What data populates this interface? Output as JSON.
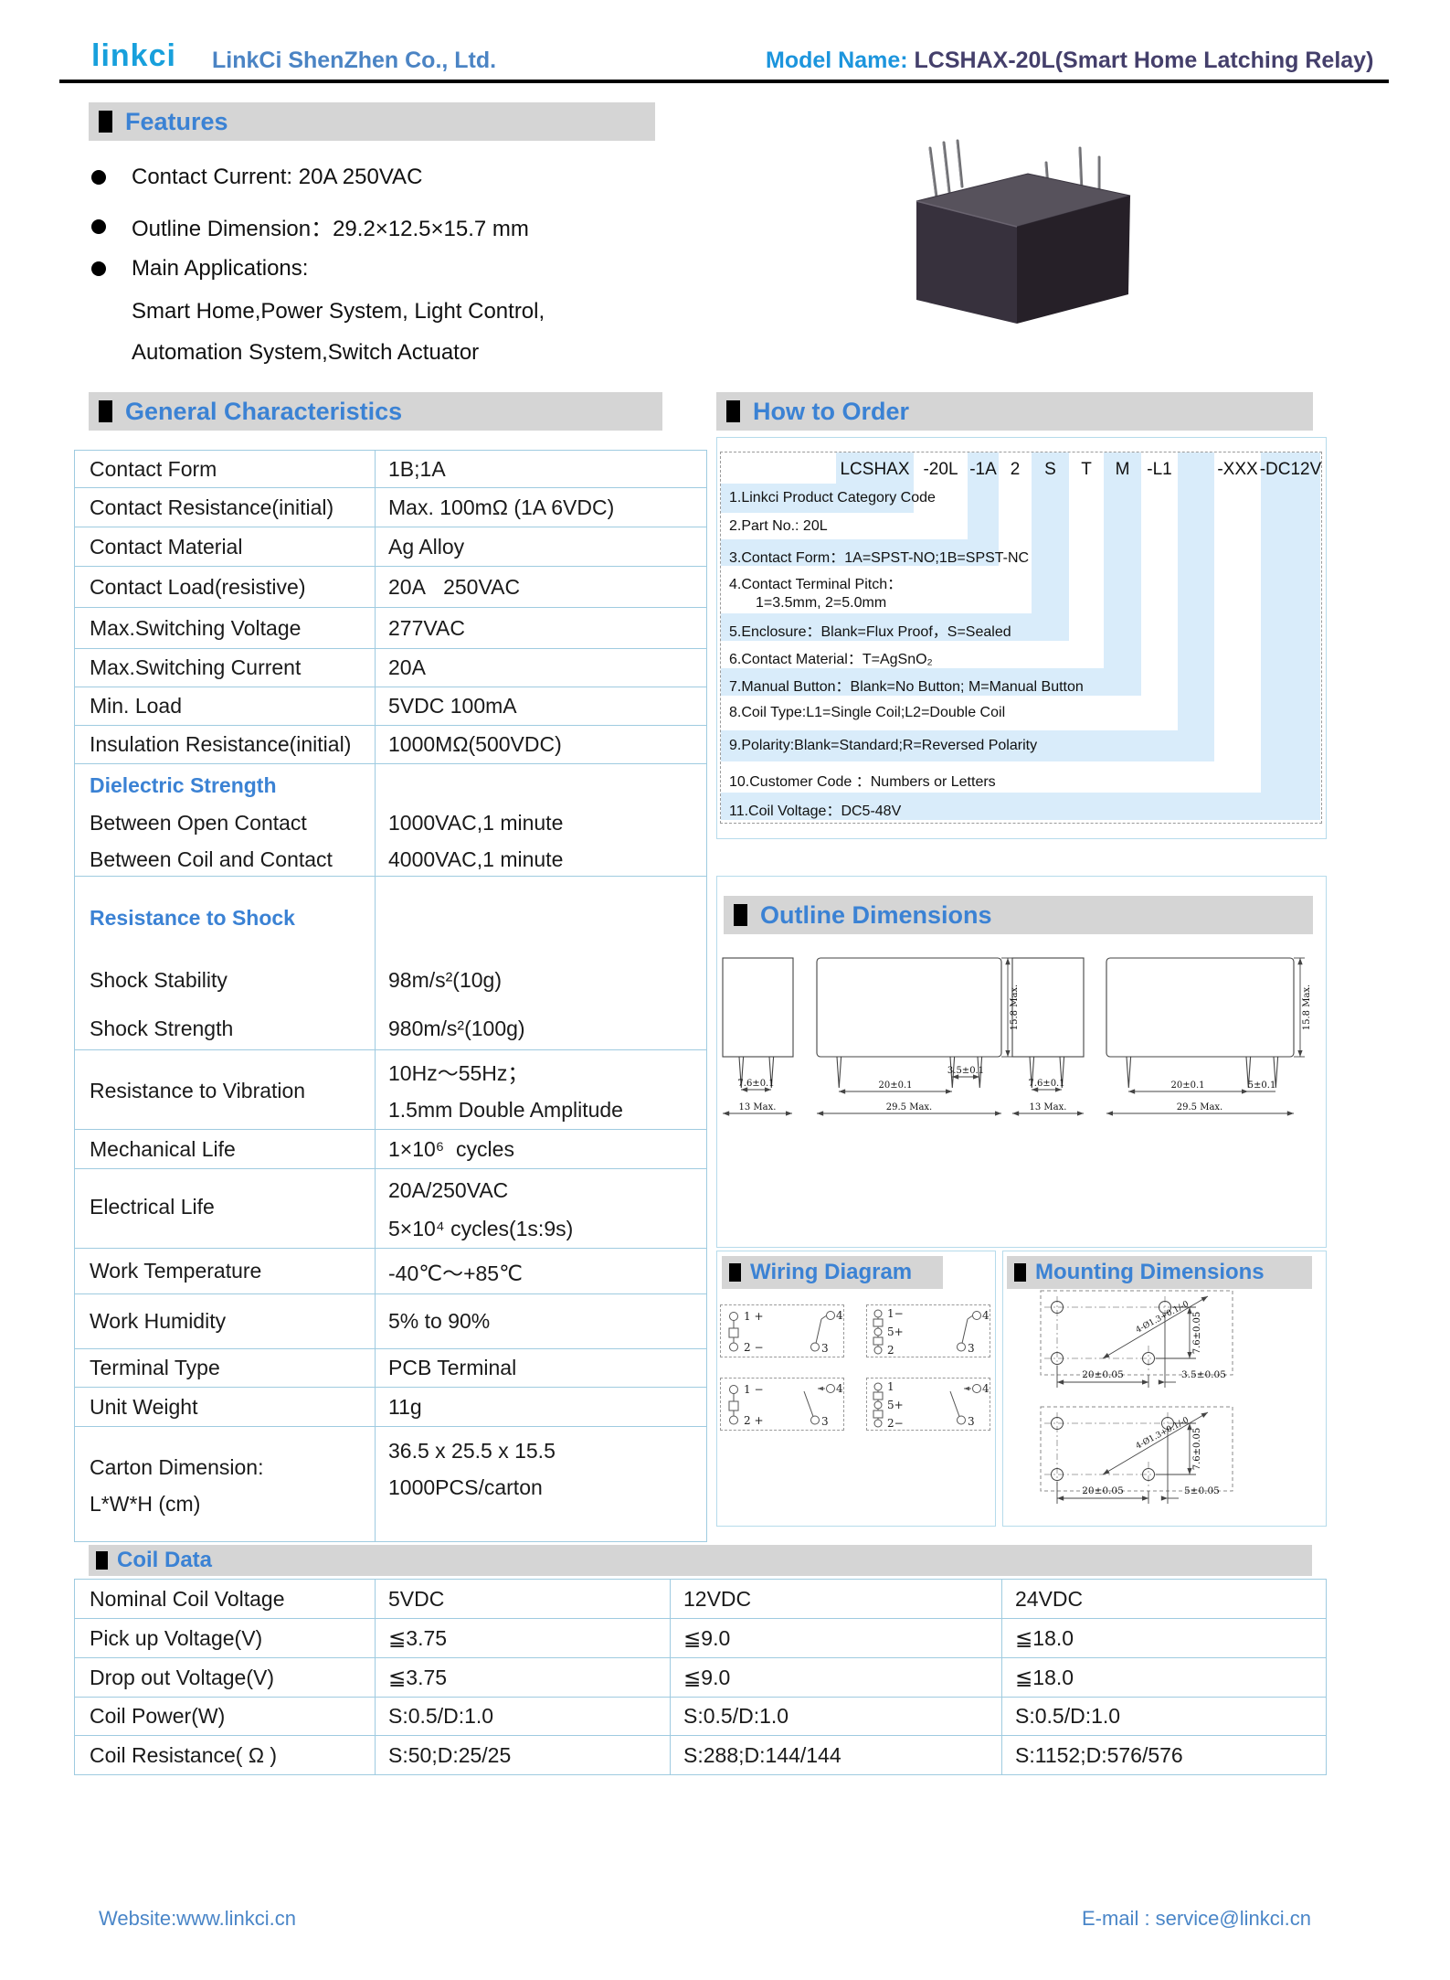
{
  "header": {
    "logo": "linkci",
    "company": "LinkCi ShenZhen Co., Ltd.",
    "model_label": "Model Name: ",
    "model_value": "LCSHAX-20L(Smart Home Latching Relay)"
  },
  "features": {
    "title": "Features",
    "bullets": [
      "Contact Current: 20A 250VAC",
      "Outline Dimension：29.2×12.5×15.7 mm",
      "Main Applications:"
    ],
    "continuation": [
      "Smart Home,Power System, Light Control,",
      "Automation System,Switch Actuator"
    ]
  },
  "general_characteristics": {
    "title": "General Characteristics",
    "rows": [
      {
        "label": [
          "Contact Form"
        ],
        "value": [
          "1B;1A"
        ]
      },
      {
        "label": [
          "Contact Resistance(initial)"
        ],
        "value": [
          "Max. 100mΩ (1A 6VDC)"
        ]
      },
      {
        "label": [
          "Contact Material"
        ],
        "value": [
          "Ag Alloy"
        ]
      },
      {
        "label": [
          "Contact Load(resistive)"
        ],
        "value": [
          "20A   250VAC"
        ]
      },
      {
        "label": [
          "Max.Switching Voltage"
        ],
        "value": [
          "277VAC"
        ]
      },
      {
        "label": [
          "Max.Switching Current"
        ],
        "value": [
          "20A"
        ]
      },
      {
        "label": [
          "Min. Load"
        ],
        "value": [
          "5VDC 100mA"
        ]
      },
      {
        "label": [
          "Insulation Resistance(initial)"
        ],
        "value": [
          "1000MΩ(500VDC)"
        ]
      },
      {
        "label": [
          "Dielectric Strength",
          "Between Open Contact",
          "Between Coil and Contact"
        ],
        "value": [
          "1000VAC,1 minute",
          "4000VAC,1 minute"
        ]
      },
      {
        "label": [
          "Resistance to Shock",
          "Shock Stability",
          "Shock Strength"
        ],
        "value": [
          "98m/s²(10g)",
          "980m/s²(100g)"
        ]
      },
      {
        "label": [
          "Resistance to Vibration"
        ],
        "value": [
          "10Hz～55Hz；",
          "1.5mm Double Amplitude"
        ]
      },
      {
        "label": [
          "Mechanical Life"
        ],
        "value": [
          "1×10⁶  cycles"
        ]
      },
      {
        "label": [
          "Electrical Life"
        ],
        "value": [
          "20A/250VAC",
          "5×10⁴ cycles(1s:9s)"
        ]
      },
      {
        "label": [
          "Work Temperature"
        ],
        "value": [
          "-40℃～+85℃"
        ]
      },
      {
        "label": [
          "Work Humidity"
        ],
        "value": [
          "5% to 90%"
        ]
      },
      {
        "label": [
          "Terminal Type"
        ],
        "value": [
          "PCB Terminal"
        ]
      },
      {
        "label": [
          "Unit Weight"
        ],
        "value": [
          "11g"
        ]
      },
      {
        "label": [
          "Carton Dimension:",
          "L*W*H (cm)"
        ],
        "value": [
          "36.5 x 25.5 x 15.5",
          "1000PCS/carton"
        ]
      }
    ]
  },
  "how_to_order": {
    "title": "How to Order",
    "codes": [
      "LCSHAX",
      "-20L",
      "-1A",
      "2",
      "S",
      "T",
      "M",
      "-L1",
      "",
      "-XXX",
      "-DC12V"
    ],
    "notes": [
      [
        "1.Linkci Product Category Code"
      ],
      [
        "2.Part No.: 20L"
      ],
      [
        "3.Contact Form：1A=SPST-NO;1B=SPST-NC"
      ],
      [
        "4.Contact Terminal Pitch：",
        "1=3.5mm, 2=5.0mm"
      ],
      [
        "5.Enclosure：Blank=Flux Proof，S=Sealed"
      ],
      [
        "6.Contact Material：T=AgSnO₂"
      ],
      [
        "7.Manual Button：Blank=No Button; M=Manual Button"
      ],
      [
        "8.Coil Type:L1=Single Coil;L2=Double Coil"
      ],
      [
        "9.Polarity:Blank=Standard;R=Reversed Polarity"
      ],
      [
        "10.Customer Code ：Numbers or Letters"
      ],
      [
        "11.Coil Voltage：DC5-48V"
      ]
    ]
  },
  "outline_dimensions": {
    "title": "Outline Dimensions",
    "d1": {
      "pitch": "7.6±0.1",
      "width": "13 Max."
    },
    "d2": {
      "pitch_small": "3.5±0.1",
      "pitch": "20±0.1",
      "width": "29.5 Max.",
      "height": "15.8 Max."
    },
    "d3": {
      "pitch": "7.6±0.1",
      "width": "13 Max."
    },
    "d4": {
      "pitch": "20±0.1",
      "pitch_small": "5±0.1",
      "width": "29.5 Max.",
      "height": "15.8 Max."
    }
  },
  "wiring_diagram": {
    "title": "Wiring Diagram",
    "diagrams": [
      {
        "terminals": [
          "1 +",
          "2 −"
        ],
        "contact_top": "4",
        "contact_bottom": "3"
      },
      {
        "terminals": [
          "1−",
          "5+",
          "2"
        ],
        "contact_top": "4",
        "contact_bottom": "3"
      },
      {
        "terminals": [
          "1 −",
          "2 +"
        ],
        "contact_top": "4",
        "contact_bottom": "3"
      },
      {
        "terminals": [
          "1",
          "5+",
          "2−"
        ],
        "contact_top": "4",
        "contact_bottom": "3"
      }
    ]
  },
  "mounting_dimensions": {
    "title": "Mounting Dimensions",
    "drawings": [
      {
        "hole": "4-Ø1.3+0.1/-0",
        "h_dim": "20±0.05",
        "h_dim2": "3.5±0.05",
        "v_dim": "7.6±0.05"
      },
      {
        "hole": "4-Ø1.3+0.1/-0",
        "h_dim": "20±0.05",
        "h_dim2": "5±0.05",
        "v_dim": "7.6±0.05"
      }
    ]
  },
  "coil_data": {
    "title": "Coil Data",
    "rows": [
      {
        "label": "Nominal Coil Voltage",
        "values": [
          "5VDC",
          "12VDC",
          "24VDC"
        ]
      },
      {
        "label": "Pick up Voltage(V)",
        "values": [
          "≦3.75",
          "≦9.0",
          "≦18.0"
        ]
      },
      {
        "label": "Drop out Voltage(V)",
        "values": [
          "≦3.75",
          "≦9.0",
          "≦18.0"
        ]
      },
      {
        "label": "Coil Power(W)",
        "values": [
          "S:0.5/D:1.0",
          "S:0.5/D:1.0",
          "S:0.5/D:1.0"
        ]
      },
      {
        "label": "Coil Resistance( Ω )",
        "values": [
          "S:50;D:25/25",
          "S:288;D:144/144",
          "S:1152;D:576/576"
        ]
      }
    ]
  },
  "footer": {
    "website": "Website:www.linkci.cn",
    "email": "E-mail : service@linkci.cn"
  }
}
